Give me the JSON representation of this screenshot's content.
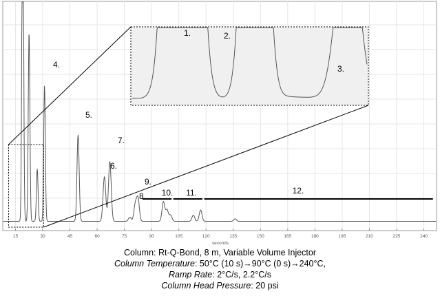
{
  "chart_data": {
    "type": "line",
    "title": "",
    "xlabel": "seconds",
    "ylabel": "",
    "xlim": [
      8,
      247
    ],
    "x_ticks": [
      15,
      30,
      45,
      60,
      75,
      90,
      105,
      120,
      135,
      150,
      165,
      180,
      195,
      210,
      225,
      240
    ],
    "grid": true,
    "peaks": [
      {
        "label": "1.",
        "x": 19.0,
        "height": 1.9
      },
      {
        "label": "2.",
        "x": 22.5,
        "height": 0.92
      },
      {
        "label": "3.",
        "x": 27.0,
        "height": 0.255
      },
      {
        "label": "4.",
        "x": 31.0,
        "height": 0.66
      },
      {
        "label": "5.",
        "x": 49.5,
        "height": 0.42
      },
      {
        "label": "6.",
        "x": 64.0,
        "height": 0.215
      },
      {
        "label": "7.",
        "x": 67.0,
        "height": 0.29
      },
      {
        "label": "8.",
        "x": 81.0,
        "height": 0.08
      },
      {
        "label": "9.",
        "x": 82.5,
        "height": 0.11
      },
      {
        "label": "10.",
        "x": 96.5,
        "height": 0.095
      },
      {
        "label": "11.",
        "x": 117.0,
        "height": 0.055
      }
    ],
    "minor_peaks": [
      {
        "x": 78.0,
        "height": 0.02
      },
      {
        "x": 98.5,
        "height": 0.055
      },
      {
        "x": 100.5,
        "height": 0.03
      },
      {
        "x": 113.0,
        "height": 0.03
      },
      {
        "x": 136.0,
        "height": 0.012
      }
    ],
    "ranges": [
      {
        "label": "10.",
        "x_start": 85,
        "x_end": 101
      },
      {
        "label": "11.",
        "x_start": 102,
        "x_end": 118
      },
      {
        "label": "12.",
        "x_start": 119,
        "x_end": 245
      }
    ],
    "inset": {
      "x_range": [
        15,
        29
      ],
      "labels": [
        "1.",
        "2.",
        "3."
      ]
    }
  },
  "caption": {
    "line1": "Column: Rt-Q-Bond, 8 m, Variable Volume Injector",
    "line2_key": "Column Temperature",
    "line2_val": ": 50°C (10 s)→90°C (0 s)→240°C,",
    "line3_key": "Ramp Rate",
    "line3_val": ": 2°C/s, 2.2°C/s",
    "line4_key": "Column Head Pressure",
    "line4_val": ": 20 psi"
  },
  "colors": {
    "trace": "#555555",
    "grid": "#e6e6e6",
    "frame": "#9a9a9a",
    "inset_fill": "#f0f0f0"
  }
}
